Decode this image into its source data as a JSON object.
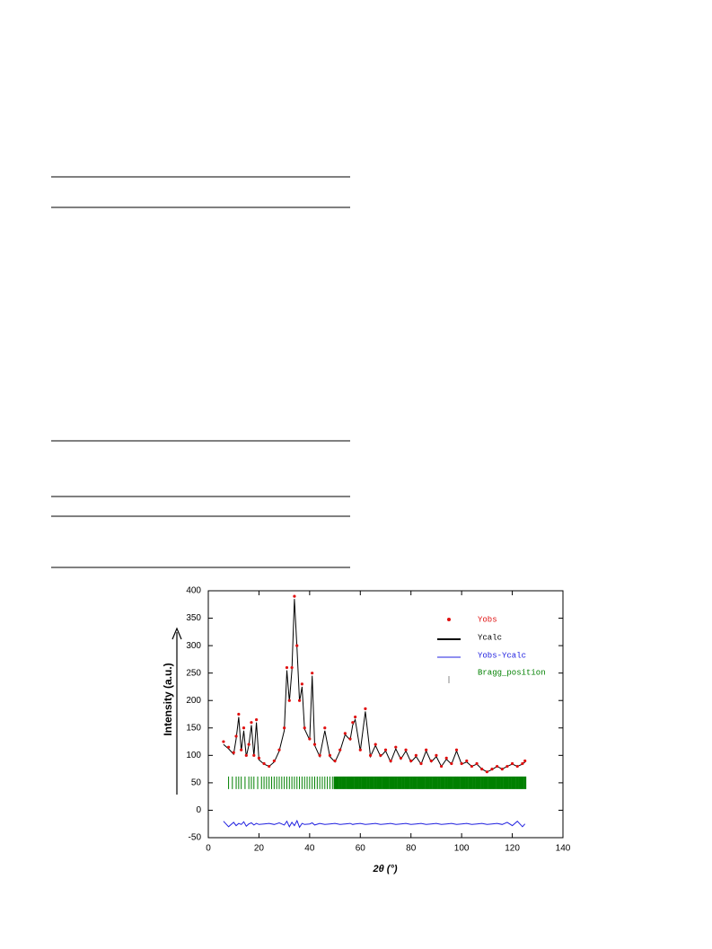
{
  "chart_data": {
    "type": "line",
    "ylabel": "Intensity (a.u.)",
    "xlabel": "2θ (°)",
    "xlim": [
      0,
      140
    ],
    "xticks": [
      0,
      20,
      40,
      60,
      80,
      100,
      120,
      140
    ],
    "ylim": [
      -50,
      400
    ],
    "yticks": [
      -50,
      0,
      50,
      100,
      150,
      200,
      250,
      300,
      350,
      400
    ],
    "x": [
      6,
      8,
      10,
      11,
      12,
      13,
      14,
      15,
      16,
      17,
      18,
      19,
      20,
      22,
      24,
      26,
      28,
      30,
      31,
      32,
      33,
      34,
      35,
      36,
      37,
      38,
      40,
      41,
      42,
      44,
      46,
      48,
      50,
      52,
      54,
      56,
      57,
      58,
      60,
      62,
      64,
      66,
      68,
      70,
      72,
      74,
      76,
      78,
      80,
      82,
      84,
      86,
      88,
      90,
      92,
      94,
      96,
      98,
      100,
      102,
      104,
      106,
      108,
      110,
      112,
      114,
      116,
      118,
      120,
      122,
      124,
      125
    ],
    "series": [
      {
        "name": "Yobs",
        "color": "#e01010",
        "style": "points",
        "values": [
          125,
          115,
          105,
          135,
          175,
          110,
          150,
          100,
          120,
          160,
          100,
          165,
          95,
          85,
          80,
          90,
          110,
          150,
          260,
          200,
          260,
          390,
          300,
          200,
          230,
          150,
          130,
          250,
          120,
          100,
          150,
          100,
          90,
          110,
          140,
          130,
          160,
          170,
          110,
          185,
          100,
          120,
          100,
          110,
          90,
          115,
          95,
          110,
          90,
          100,
          85,
          110,
          90,
          100,
          80,
          95,
          85,
          110,
          85,
          90,
          80,
          85,
          75,
          70,
          75,
          80,
          75,
          80,
          85,
          80,
          85,
          90
        ]
      },
      {
        "name": "Ycalc",
        "color": "#000000",
        "style": "line",
        "values": [
          120,
          112,
          102,
          130,
          170,
          108,
          145,
          98,
          118,
          155,
          98,
          160,
          92,
          84,
          80,
          88,
          108,
          145,
          255,
          198,
          255,
          385,
          295,
          198,
          225,
          148,
          128,
          245,
          118,
          98,
          145,
          98,
          88,
          108,
          138,
          128,
          155,
          165,
          108,
          180,
          98,
          118,
          98,
          108,
          88,
          112,
          93,
          108,
          88,
          98,
          84,
          108,
          88,
          98,
          80,
          93,
          84,
          108,
          84,
          88,
          80,
          84,
          75,
          70,
          74,
          80,
          75,
          80,
          84,
          80,
          84,
          88
        ]
      },
      {
        "name": "Yobs-Ycalc",
        "color": "#2020e0",
        "style": "line",
        "values": [
          -20,
          -30,
          -22,
          -28,
          -24,
          -26,
          -21,
          -29,
          -25,
          -23,
          -27,
          -24,
          -26,
          -25,
          -24,
          -26,
          -23,
          -27,
          -20,
          -30,
          -22,
          -28,
          -19,
          -31,
          -24,
          -26,
          -25,
          -23,
          -27,
          -24,
          -26,
          -25,
          -24,
          -26,
          -25,
          -24,
          -26,
          -25,
          -24,
          -26,
          -25,
          -24,
          -26,
          -25,
          -24,
          -26,
          -25,
          -24,
          -26,
          -25,
          -24,
          -26,
          -25,
          -24,
          -26,
          -25,
          -24,
          -26,
          -25,
          -24,
          -26,
          -25,
          -24,
          -26,
          -25,
          -24,
          -26,
          -22,
          -28,
          -20,
          -30,
          -25
        ]
      }
    ],
    "bragg": {
      "name": "Bragg_position",
      "color": "#008000",
      "x": [
        8,
        9.5,
        11,
        12,
        13,
        14.5,
        16,
        17,
        18,
        19.5,
        21,
        22,
        23,
        24,
        25,
        26,
        27,
        28,
        29,
        30,
        31,
        32,
        33,
        34,
        35,
        36,
        37,
        38,
        39,
        40,
        41,
        42,
        43,
        44,
        45,
        46,
        47,
        48,
        49,
        50,
        51,
        52,
        53,
        54,
        55,
        56,
        57,
        58,
        59,
        60,
        61,
        62,
        63,
        64,
        65,
        66,
        67,
        68,
        69,
        70,
        71,
        72,
        73,
        74,
        75,
        76,
        77,
        78,
        79,
        80,
        81,
        82,
        83,
        84,
        85,
        86,
        87,
        88,
        89,
        90,
        91,
        92,
        93,
        94,
        95,
        96,
        97,
        98,
        99,
        100,
        101,
        102,
        103,
        104,
        105,
        106,
        107,
        108,
        109,
        110,
        111,
        112,
        113,
        114,
        115,
        116,
        117,
        118,
        119,
        120,
        121,
        122,
        123,
        124,
        125
      ]
    }
  }
}
